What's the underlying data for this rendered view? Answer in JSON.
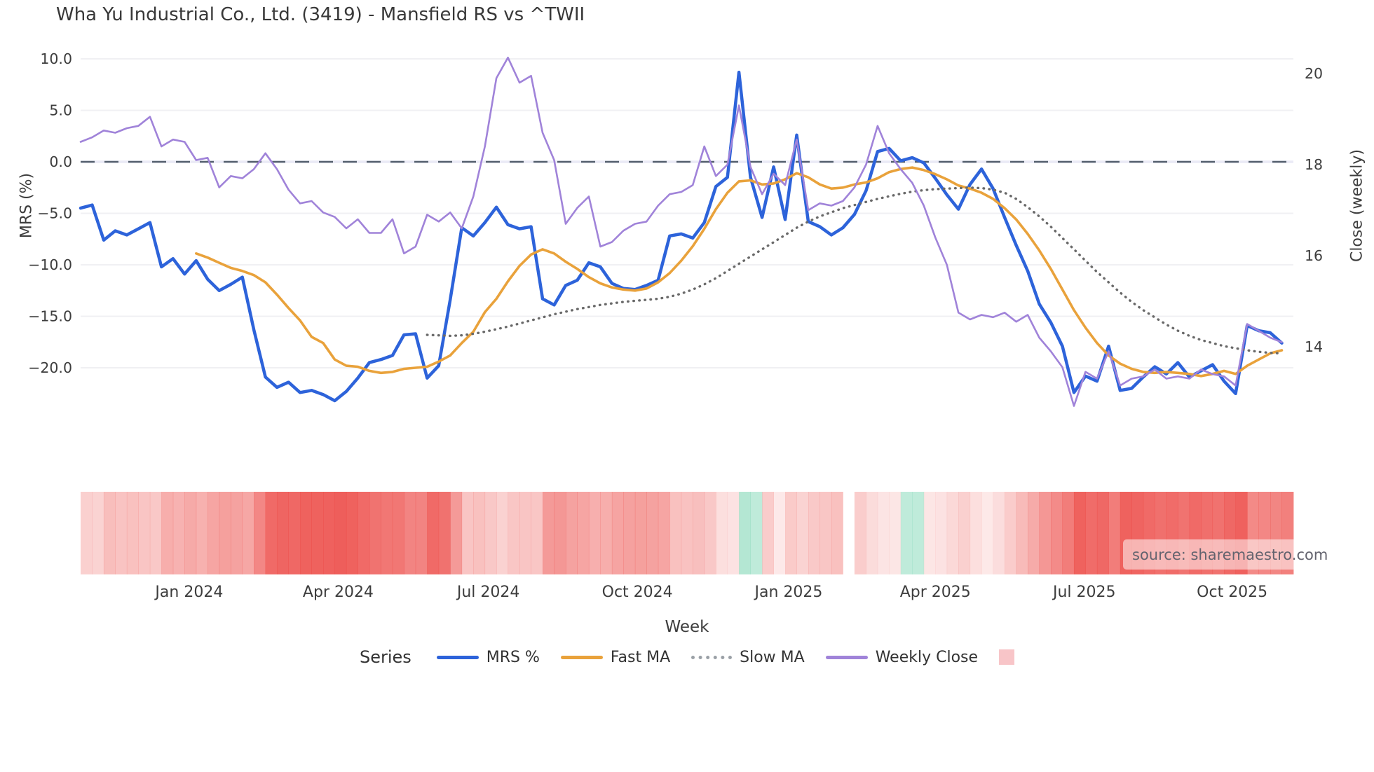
{
  "title": "Wha Yu Industrial Co., Ltd. (3419) - Mansfield RS vs ^TWII",
  "watermark": "source: sharemaestro.com",
  "chart_data": {
    "type": "line",
    "title": "Wha Yu Industrial Co., Ltd. (3419) - Mansfield RS vs ^TWII",
    "xlabel": "Week",
    "left_axis": {
      "label": "MRS (%)",
      "tick_values": [
        10,
        5,
        0,
        -5,
        -10,
        -15,
        -20
      ],
      "tick_labels": [
        "10.0",
        "5.0",
        "0.0",
        "−5.0",
        "−10.0",
        "−15.0",
        "−20.0"
      ],
      "zero_line": 0
    },
    "right_axis": {
      "label": "Close (weekly)",
      "tick_values": [
        20,
        18,
        16,
        14
      ],
      "tick_labels": [
        "20",
        "18",
        "16",
        "14"
      ]
    },
    "x_ticks": [
      {
        "week": 9.4,
        "label": "Jan 2024"
      },
      {
        "week": 22.3,
        "label": "Apr 2024"
      },
      {
        "week": 35.3,
        "label": "Jul 2024"
      },
      {
        "week": 48.2,
        "label": "Oct 2024"
      },
      {
        "week": 61.3,
        "label": "Jan 2025"
      },
      {
        "week": 74.0,
        "label": "Apr 2025"
      },
      {
        "week": 86.9,
        "label": "Jul 2025"
      },
      {
        "week": 99.7,
        "label": "Oct 2025"
      }
    ],
    "grid": true,
    "legend_position": "bottom",
    "series": [
      {
        "name": "MRS %",
        "axis": "left",
        "style": "solid",
        "color": "#2d63da",
        "width": 4.5,
        "values": [
          -4.5,
          -4.2,
          -7.6,
          -6.7,
          -7.1,
          -6.5,
          -5.9,
          -10.2,
          -9.4,
          -10.9,
          -9.6,
          -11.4,
          -12.5,
          -11.9,
          -11.2,
          -16.3,
          -20.9,
          -21.9,
          -21.4,
          -22.4,
          -22.2,
          -22.6,
          -23.2,
          -22.3,
          -21.0,
          -19.5,
          -19.2,
          -18.8,
          -16.8,
          -16.7,
          -21.0,
          -19.8,
          -13.4,
          -6.4,
          -7.2,
          -5.9,
          -4.4,
          -6.1,
          -6.5,
          -6.3,
          -13.3,
          -13.9,
          -12.0,
          -11.5,
          -9.8,
          -10.2,
          -11.8,
          -12.3,
          -12.4,
          -12.0,
          -11.5,
          -7.2,
          -7.0,
          -7.4,
          -5.9,
          -2.4,
          -1.5,
          8.7,
          -1.5,
          -5.4,
          -0.5,
          -5.6,
          2.6,
          -5.8,
          -6.3,
          -7.1,
          -6.4,
          -5.1,
          -2.8,
          1.0,
          1.3,
          0.1,
          0.4,
          -0.1,
          -1.6,
          -3.2,
          -4.6,
          -2.2,
          -0.7,
          -2.6,
          -5.4,
          -8.1,
          -10.6,
          -13.8,
          -15.6,
          -17.9,
          -22.4,
          -20.8,
          -21.3,
          -17.9,
          -22.2,
          -22.0,
          -20.9,
          -19.9,
          -20.6,
          -19.5,
          -20.9,
          -20.3,
          -19.7,
          -21.3,
          -22.5,
          -15.9,
          -16.4,
          -16.6,
          -17.6
        ]
      },
      {
        "name": "Fast MA",
        "axis": "left",
        "style": "solid",
        "color": "#e9a23b",
        "width": 3.6,
        "values": [
          null,
          null,
          null,
          null,
          null,
          null,
          null,
          null,
          null,
          null,
          -8.9,
          -9.3,
          -9.8,
          -10.3,
          -10.6,
          -11.0,
          -11.7,
          -12.9,
          -14.2,
          -15.4,
          -17.0,
          -17.6,
          -19.2,
          -19.8,
          -19.9,
          -20.3,
          -20.5,
          -20.4,
          -20.1,
          -20.0,
          -19.9,
          -19.4,
          -18.8,
          -17.6,
          -16.5,
          -14.6,
          -13.3,
          -11.6,
          -10.1,
          -9.0,
          -8.5,
          -8.9,
          -9.7,
          -10.4,
          -11.2,
          -11.8,
          -12.2,
          -12.4,
          -12.5,
          -12.3,
          -11.7,
          -10.8,
          -9.6,
          -8.2,
          -6.5,
          -4.6,
          -3.0,
          -1.9,
          -1.8,
          -2.2,
          -2.1,
          -1.7,
          -1.1,
          -1.5,
          -2.2,
          -2.6,
          -2.5,
          -2.2,
          -2.0,
          -1.6,
          -1.0,
          -0.7,
          -0.55,
          -0.8,
          -1.2,
          -1.7,
          -2.3,
          -2.6,
          -3.0,
          -3.6,
          -4.5,
          -5.6,
          -7.0,
          -8.6,
          -10.4,
          -12.4,
          -14.4,
          -16.1,
          -17.6,
          -18.8,
          -19.6,
          -20.1,
          -20.4,
          -20.5,
          -20.4,
          -20.5,
          -20.6,
          -20.8,
          -20.6,
          -20.3,
          -20.6,
          -19.8,
          -19.2,
          -18.6,
          -18.3
        ]
      },
      {
        "name": "Slow MA",
        "axis": "left",
        "style": "dotted",
        "color": "#696969",
        "width": 3.4,
        "values": [
          null,
          null,
          null,
          null,
          null,
          null,
          null,
          null,
          null,
          null,
          null,
          null,
          null,
          null,
          null,
          null,
          null,
          null,
          null,
          null,
          null,
          null,
          null,
          null,
          null,
          null,
          null,
          null,
          null,
          null,
          -16.8,
          -16.85,
          -16.9,
          -16.85,
          -16.7,
          -16.5,
          -16.25,
          -16.0,
          -15.7,
          -15.4,
          -15.1,
          -14.8,
          -14.55,
          -14.3,
          -14.1,
          -13.9,
          -13.75,
          -13.6,
          -13.5,
          -13.4,
          -13.3,
          -13.1,
          -12.8,
          -12.4,
          -11.9,
          -11.3,
          -10.6,
          -9.9,
          -9.2,
          -8.5,
          -7.8,
          -7.1,
          -6.4,
          -5.8,
          -5.3,
          -4.9,
          -4.5,
          -4.2,
          -3.9,
          -3.6,
          -3.35,
          -3.1,
          -2.9,
          -2.75,
          -2.65,
          -2.6,
          -2.55,
          -2.5,
          -2.55,
          -2.7,
          -3.0,
          -3.6,
          -4.4,
          -5.3,
          -6.3,
          -7.4,
          -8.5,
          -9.6,
          -10.7,
          -11.7,
          -12.7,
          -13.6,
          -14.4,
          -15.1,
          -15.8,
          -16.4,
          -16.9,
          -17.3,
          -17.6,
          -17.9,
          -18.1,
          -18.3,
          -18.45,
          -18.55,
          -18.6
        ]
      },
      {
        "name": "Weekly Close",
        "axis": "right",
        "style": "solid",
        "color": "#a083d9",
        "width": 2.6,
        "values": [
          18.5,
          18.6,
          18.75,
          18.7,
          18.8,
          18.85,
          19.05,
          18.4,
          18.55,
          18.5,
          18.1,
          18.15,
          17.5,
          17.75,
          17.7,
          17.9,
          18.25,
          17.9,
          17.45,
          17.15,
          17.2,
          16.95,
          16.85,
          16.6,
          16.8,
          16.5,
          16.5,
          16.8,
          16.05,
          16.2,
          16.9,
          16.75,
          16.95,
          16.6,
          17.3,
          18.4,
          19.9,
          20.35,
          19.8,
          19.95,
          18.7,
          18.1,
          16.7,
          17.05,
          17.3,
          16.2,
          16.3,
          16.55,
          16.7,
          16.75,
          17.1,
          17.35,
          17.4,
          17.55,
          18.4,
          17.75,
          18.0,
          19.3,
          17.95,
          17.35,
          17.8,
          17.55,
          18.55,
          17.0,
          17.15,
          17.1,
          17.2,
          17.5,
          18.0,
          18.85,
          18.25,
          17.9,
          17.6,
          17.1,
          16.4,
          15.8,
          14.75,
          14.6,
          14.7,
          14.65,
          14.75,
          14.55,
          14.7,
          14.2,
          13.9,
          13.55,
          12.7,
          13.45,
          13.3,
          13.9,
          13.15,
          13.3,
          13.35,
          13.5,
          13.3,
          13.35,
          13.3,
          13.5,
          13.4,
          13.35,
          13.15,
          14.5,
          14.35,
          14.2,
          14.1
        ]
      }
    ],
    "heatmap": {
      "description": "weekly strip under chart; positive=red intensity, negative=green, null=gap",
      "values": [
        0.2,
        0.18,
        0.33,
        0.29,
        0.31,
        0.28,
        0.26,
        0.44,
        0.41,
        0.47,
        0.42,
        0.5,
        0.54,
        0.52,
        0.49,
        0.71,
        0.91,
        0.95,
        0.93,
        0.97,
        0.97,
        0.98,
        1.0,
        0.97,
        0.91,
        0.85,
        0.83,
        0.82,
        0.73,
        0.73,
        0.91,
        0.86,
        0.58,
        0.28,
        0.31,
        0.26,
        0.19,
        0.27,
        0.28,
        0.27,
        0.58,
        0.6,
        0.52,
        0.5,
        0.43,
        0.44,
        0.51,
        0.53,
        0.54,
        0.52,
        0.5,
        0.31,
        0.3,
        0.32,
        0.26,
        0.1,
        0.07,
        -0.55,
        -0.35,
        0.23,
        0.02,
        0.24,
        0.18,
        0.25,
        0.27,
        0.31,
        null,
        0.22,
        0.12,
        0.06,
        0.05,
        -0.35,
        -0.35,
        0.05,
        0.07,
        0.14,
        0.2,
        0.1,
        0.03,
        0.11,
        0.23,
        0.35,
        0.46,
        0.6,
        0.68,
        0.78,
        0.97,
        0.9,
        0.93,
        0.78,
        0.97,
        0.96,
        0.91,
        0.87,
        0.9,
        0.85,
        0.91,
        0.88,
        0.86,
        0.93,
        0.98,
        0.69,
        0.71,
        0.72,
        0.76
      ],
      "red_color": "#ec4844",
      "green_color": "#61cda3",
      "legend_swatch_color": "#f8c5c8"
    }
  },
  "legend": {
    "series_label": "Series",
    "entries": [
      {
        "label": "MRS %",
        "type": "line",
        "color": "#2d63da"
      },
      {
        "label": "Fast MA",
        "type": "line",
        "color": "#e9a23b"
      },
      {
        "label": "Slow MA",
        "type": "dotted",
        "color": "#9aa0a6"
      },
      {
        "label": "Weekly Close",
        "type": "line",
        "color": "#a083d9"
      },
      {
        "label": "",
        "type": "square",
        "color": "#f8c5c8"
      }
    ]
  },
  "left_axis": {
    "label": "MRS (%)"
  },
  "right_axis": {
    "label": "Close (weekly)"
  },
  "x_axis": {
    "label": "Week"
  }
}
